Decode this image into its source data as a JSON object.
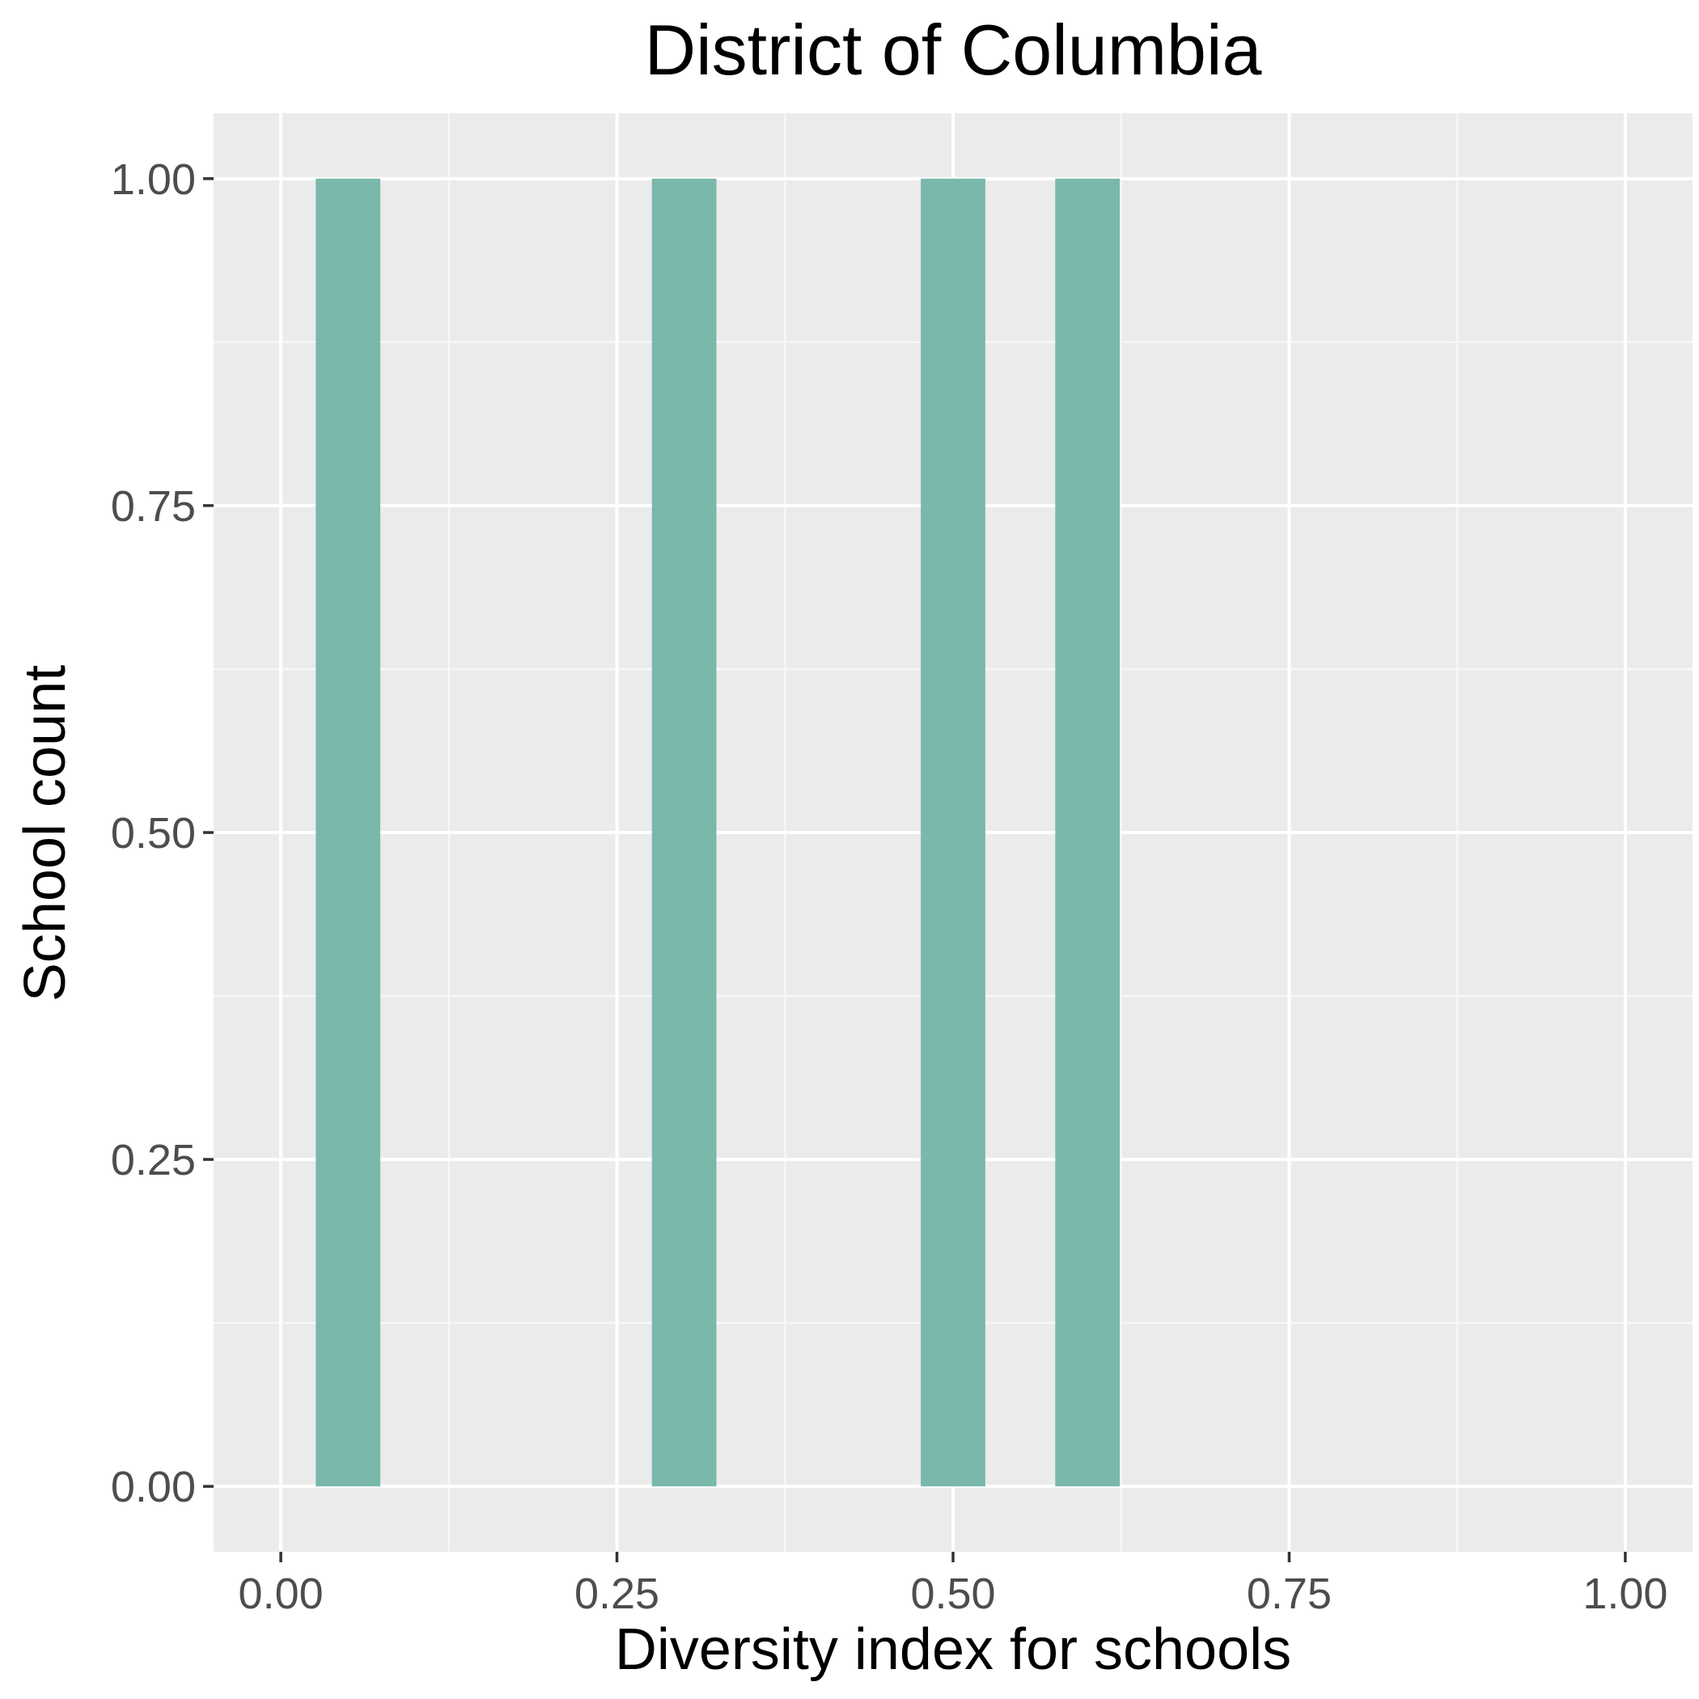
{
  "chart_data": {
    "type": "bar",
    "title": "District of Columbia",
    "xlabel": "Diversity index for schools",
    "ylabel": "School count",
    "xlim": [
      -0.05,
      1.05
    ],
    "ylim": [
      -0.05,
      1.05
    ],
    "x_ticks": [
      0.0,
      0.25,
      0.5,
      0.75,
      1.0
    ],
    "x_tick_labels": [
      "0.00",
      "0.25",
      "0.50",
      "0.75",
      "1.00"
    ],
    "y_ticks": [
      0.0,
      0.25,
      0.5,
      0.75,
      1.0
    ],
    "y_tick_labels": [
      "0.00",
      "0.25",
      "0.50",
      "0.75",
      "1.00"
    ],
    "bin_width": 0.048,
    "bars": [
      {
        "x": 0.05,
        "count": 1
      },
      {
        "x": 0.3,
        "count": 1
      },
      {
        "x": 0.5,
        "count": 1
      },
      {
        "x": 0.6,
        "count": 1
      }
    ],
    "grid": true,
    "legend": "none",
    "colors": {
      "panel_background": "#ebebeb",
      "grid_major": "#ffffff",
      "grid_minor": "#f7f7f7",
      "bar_fill": "#7ab8ac",
      "tick_mark": "#333333"
    }
  }
}
